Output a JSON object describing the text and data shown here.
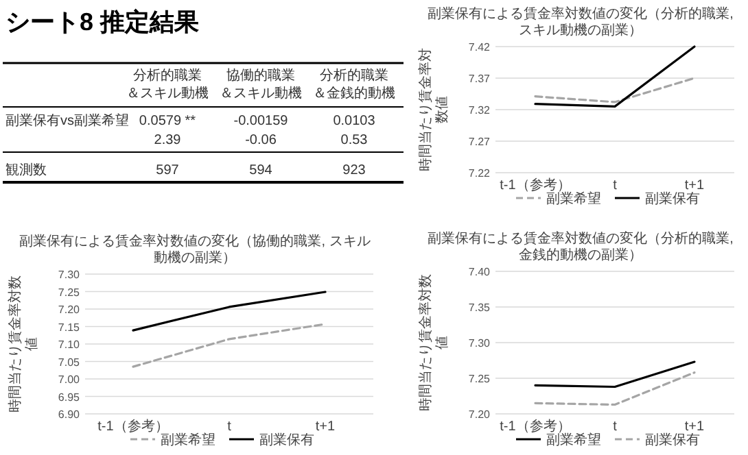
{
  "chart_data": [
    {
      "type": "other",
      "title": "シート8 推定結果",
      "categories": [
        "分析的職業＆スキル動機",
        "協働的職業＆スキル動機",
        "分析的職業＆金銭的動機"
      ],
      "y_categories": [
        "副業保有vs副業希望",
        null,
        "観測数"
      ],
      "cell_labels": [
        [
          "0.0579 **",
          "-0.00159",
          "0.0103"
        ],
        [
          "2.39",
          "-0.06",
          "0.53"
        ],
        [
          "597",
          "594",
          "923"
        ]
      ]
    },
    {
      "type": "line",
      "title": "副業保有による賃金率対数値の変化（分析的職業, スキル動機の副業）",
      "ylabel": "時間当たり賃金率対数値",
      "categories": [
        "t-1（参考）",
        "t",
        "t+1"
      ],
      "series": [
        {
          "name": "副業希望",
          "color": "#a5a5a5",
          "line_style": "dashed",
          "values": [
            7.341,
            7.332,
            7.37
          ]
        },
        {
          "name": "副業保有",
          "color": "#000000",
          "line_style": "solid",
          "values": [
            7.329,
            7.325,
            7.42
          ]
        }
      ],
      "ylim": [
        7.22,
        7.42
      ],
      "yticks": [
        7.22,
        7.27,
        7.32,
        7.37,
        7.42
      ],
      "grid": "y",
      "legend": "bottom"
    },
    {
      "type": "line",
      "title": "副業保有による賃金率対数値の変化（協働的職業, スキル動機の副業）",
      "ylabel": "時間当たり賃金率対数値",
      "categories": [
        "t-1（参考）",
        "t",
        "t+1"
      ],
      "series": [
        {
          "name": "副業希望",
          "color": "#a5a5a5",
          "line_style": "dashed",
          "values": [
            7.035,
            7.114,
            7.157
          ]
        },
        {
          "name": "副業保有",
          "color": "#000000",
          "line_style": "solid",
          "values": [
            7.139,
            7.206,
            7.249
          ]
        }
      ],
      "ylim": [
        6.9,
        7.3
      ],
      "yticks": [
        {
          "value": 6.9,
          "label": "6.90"
        },
        6.95,
        {
          "value": 7.0,
          "label": "7.00"
        },
        7.05,
        {
          "value": 7.1,
          "label": "7.10"
        },
        7.15,
        {
          "value": 7.2,
          "label": "7.20"
        },
        7.25,
        {
          "value": 7.3,
          "label": "7.30"
        }
      ],
      "grid": "y",
      "legend": "bottom"
    },
    {
      "type": "line",
      "title": "副業保有による賃金率対数値の変化（分析的職業, 金銭的動機の副業）",
      "ylabel": "時間当たり賃金率対数値",
      "categories": [
        "t-1（参考）",
        "t",
        "t+1"
      ],
      "series": [
        {
          "name": "副業希望",
          "color": "#000000",
          "line_style": "solid",
          "values": [
            7.24,
            7.238,
            7.273
          ]
        },
        {
          "name": "副業保有",
          "color": "#a5a5a5",
          "line_style": "dashed",
          "values": [
            7.215,
            7.213,
            7.258
          ]
        }
      ],
      "ylim": [
        7.2,
        7.4
      ],
      "yticks": [
        {
          "value": 7.2,
          "label": "7.20"
        },
        7.25,
        {
          "value": 7.3,
          "label": "7.30"
        },
        7.35,
        {
          "value": 7.4,
          "label": "7.40"
        }
      ],
      "grid": "y",
      "legend": "bottom"
    }
  ]
}
